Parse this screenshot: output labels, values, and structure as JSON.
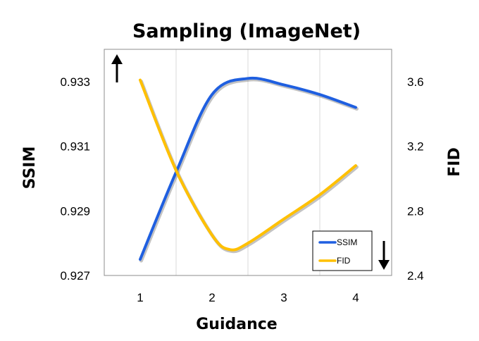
{
  "chart_data": {
    "type": "line",
    "title": "Sampling (ImageNet)",
    "xlabel": "Guidance",
    "ylabel": "SSIM",
    "y2label": "FID",
    "xlim": [
      0.5,
      4.5
    ],
    "ylim": [
      0.927,
      0.934
    ],
    "y2lim": [
      2.4,
      3.8
    ],
    "x_ticks": [
      1,
      2,
      3,
      4
    ],
    "y_ticks": [
      0.927,
      0.929,
      0.931,
      0.933
    ],
    "y_tick_labels": [
      "0.927",
      "0.929",
      "0.931",
      "0.933"
    ],
    "y2_ticks": [
      2.4,
      2.8,
      3.2,
      3.6
    ],
    "y2_tick_labels": [
      "2.4",
      "2.8",
      "3.2",
      "3.6"
    ],
    "grid": "vertical",
    "legend_position": "bottom-right",
    "annotations": [
      "↑",
      "↓"
    ],
    "series": [
      {
        "name": "SSIM",
        "axis": "left",
        "color": "#1f5fe0",
        "x": [
          1.0,
          1.5,
          2.0,
          2.5,
          3.0,
          3.5,
          4.0
        ],
        "y": [
          0.9275,
          0.9302,
          0.9326,
          0.9331,
          0.9329,
          0.9326,
          0.9322
        ]
      },
      {
        "name": "FID",
        "axis": "right",
        "color": "#ffc000",
        "x": [
          1.0,
          1.5,
          2.0,
          2.25,
          2.5,
          3.0,
          3.5,
          4.0
        ],
        "y": [
          3.61,
          3.05,
          2.65,
          2.56,
          2.6,
          2.75,
          2.9,
          3.08
        ]
      }
    ]
  }
}
